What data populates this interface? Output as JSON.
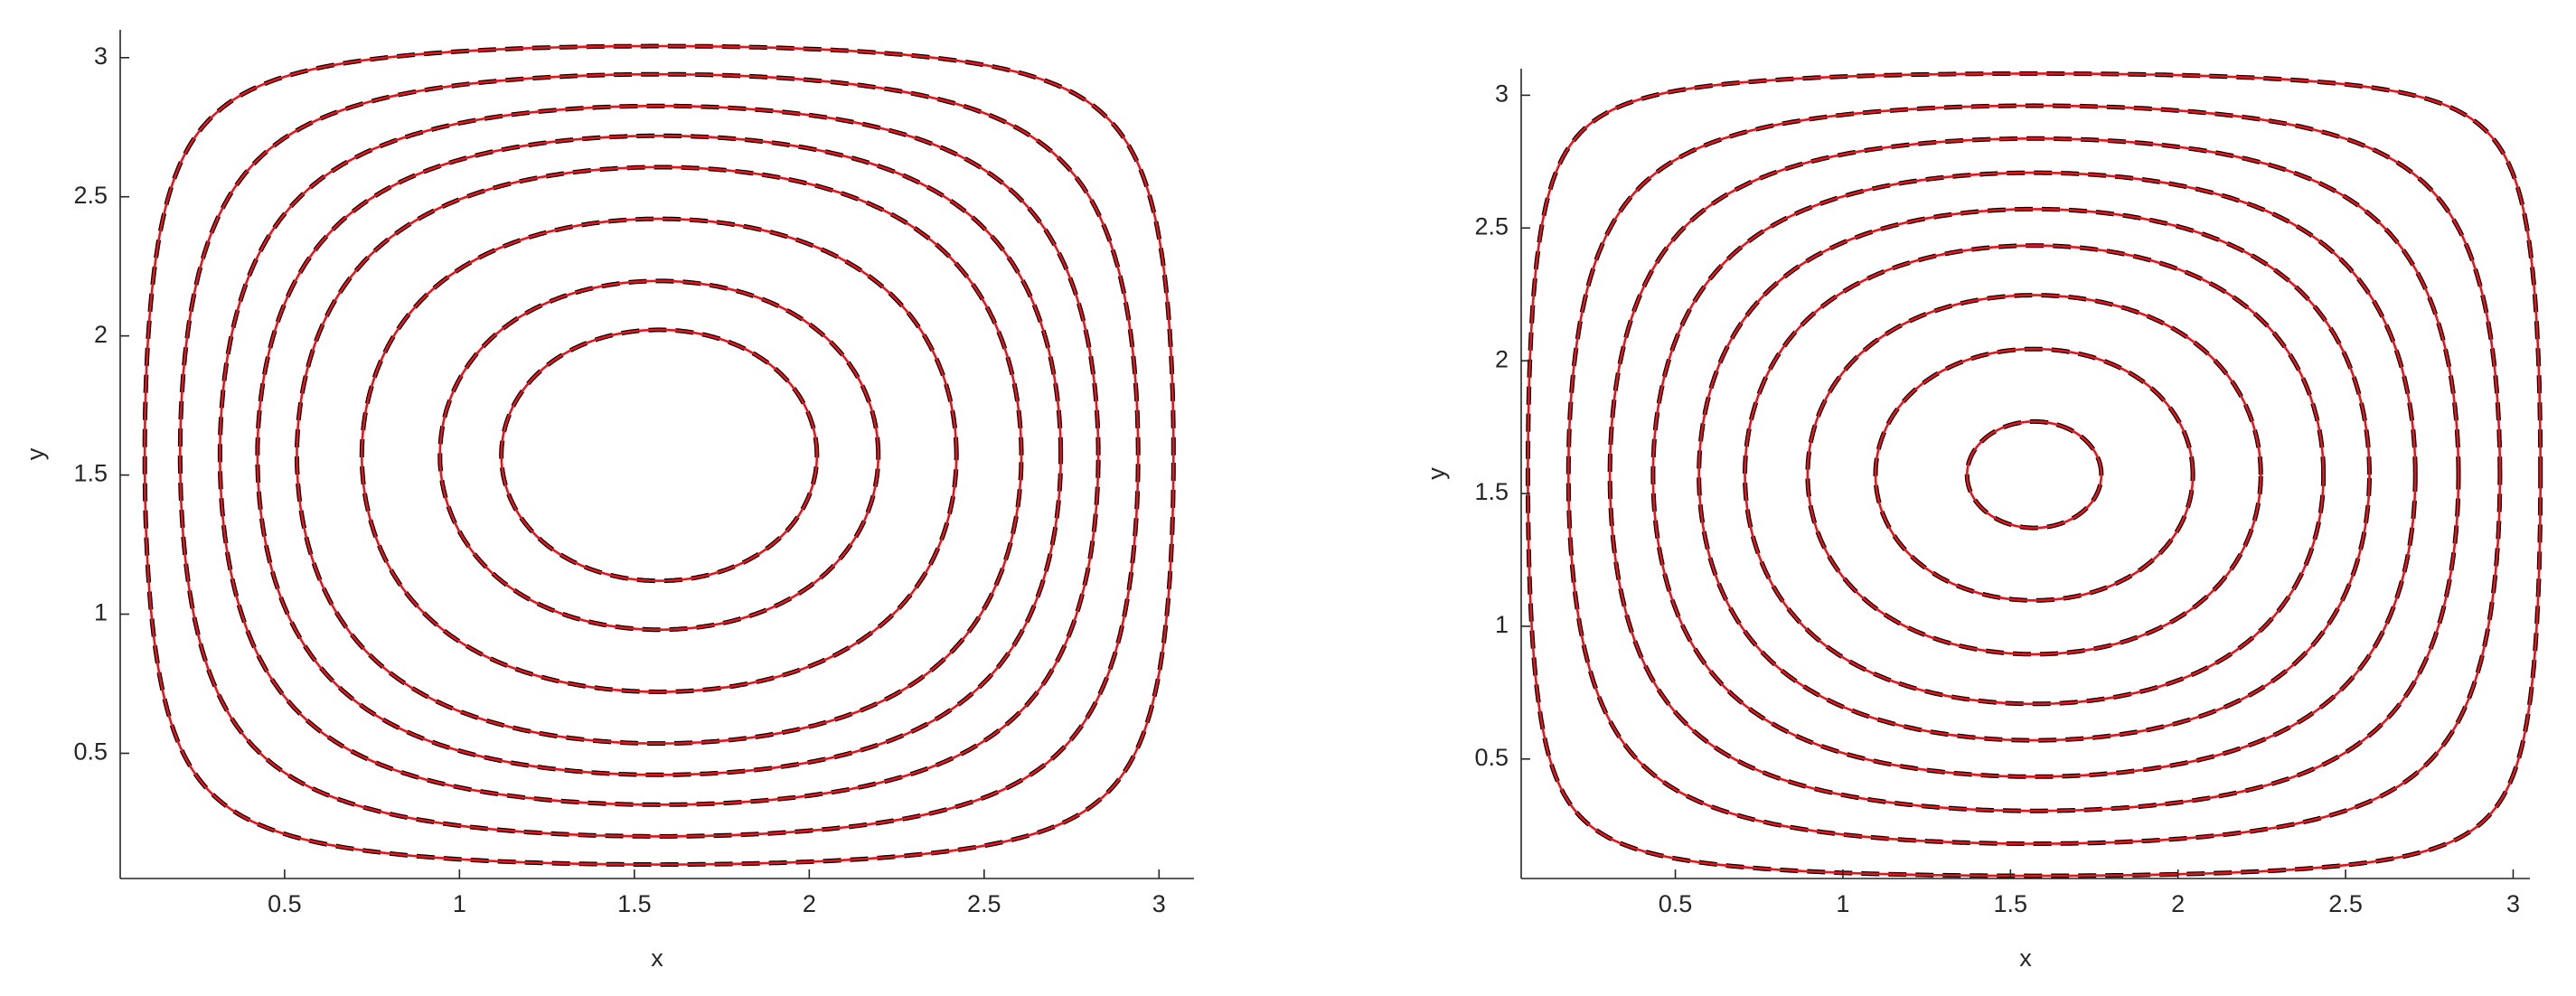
{
  "chart_data": [
    {
      "type": "contour",
      "xlabel": "x",
      "ylabel": "y",
      "xlim": [
        0.03,
        3.1
      ],
      "ylim": [
        0.05,
        3.1
      ],
      "xticks": [
        0.5,
        1,
        1.5,
        2,
        2.5,
        3
      ],
      "yticks": [
        0.5,
        1,
        1.5,
        2,
        2.5,
        3
      ],
      "series": [
        {
          "color": "#000000",
          "dashed": true,
          "levels": [
            0.1,
            0.2,
            0.31,
            0.41,
            0.51,
            0.66,
            0.81,
            0.9
          ]
        },
        {
          "color": "#e8141c",
          "dashed": false,
          "levels": [
            0.1,
            0.2,
            0.31,
            0.41,
            0.51,
            0.66,
            0.81,
            0.9
          ]
        }
      ]
    },
    {
      "type": "contour",
      "xlabel": "x",
      "ylabel": "y",
      "xlim": [
        0.04,
        3.05
      ],
      "ylim": [
        0.05,
        3.1
      ],
      "xticks": [
        0.5,
        1,
        1.5,
        2,
        2.5,
        3
      ],
      "yticks": [
        0.5,
        1,
        1.5,
        2,
        2.5,
        3
      ],
      "series": [
        {
          "color": "#000000",
          "dashed": true,
          "levels": [
            0.06,
            0.18,
            0.3,
            0.42,
            0.54,
            0.65,
            0.78,
            0.89,
            0.98
          ]
        },
        {
          "color": "#e8141c",
          "dashed": false,
          "levels": [
            0.06,
            0.18,
            0.3,
            0.42,
            0.54,
            0.65,
            0.78,
            0.89,
            0.98
          ]
        }
      ]
    }
  ]
}
